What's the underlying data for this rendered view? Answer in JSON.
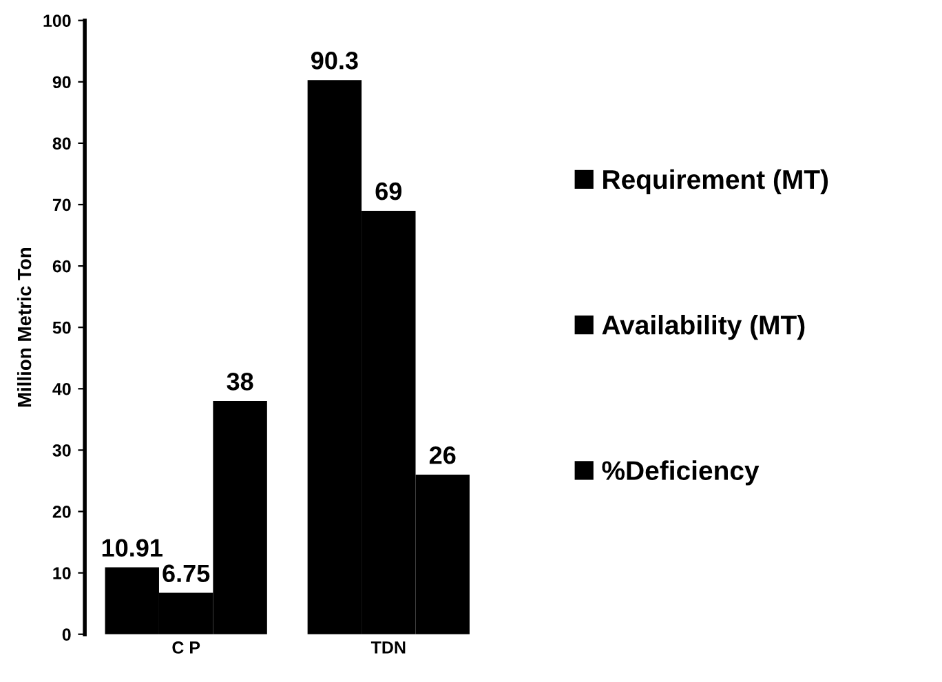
{
  "chart_data": {
    "type": "bar",
    "ylabel": "Million Metric Ton",
    "categories": [
      "C P",
      "TDN"
    ],
    "series": [
      {
        "name": "Requirement (MT)",
        "color": "#000000",
        "values": [
          10.91,
          90.3
        ]
      },
      {
        "name": "Availability (MT)",
        "color": "#000000",
        "values": [
          6.75,
          69
        ]
      },
      {
        "name": "%Deficiency",
        "color": "#000000",
        "values": [
          38,
          26
        ]
      }
    ],
    "ylim": [
      0,
      100
    ],
    "yticks": [
      0,
      10,
      20,
      30,
      40,
      50,
      60,
      70,
      80,
      90,
      100
    ],
    "data_labels": true,
    "grid": false,
    "legend": "right"
  }
}
